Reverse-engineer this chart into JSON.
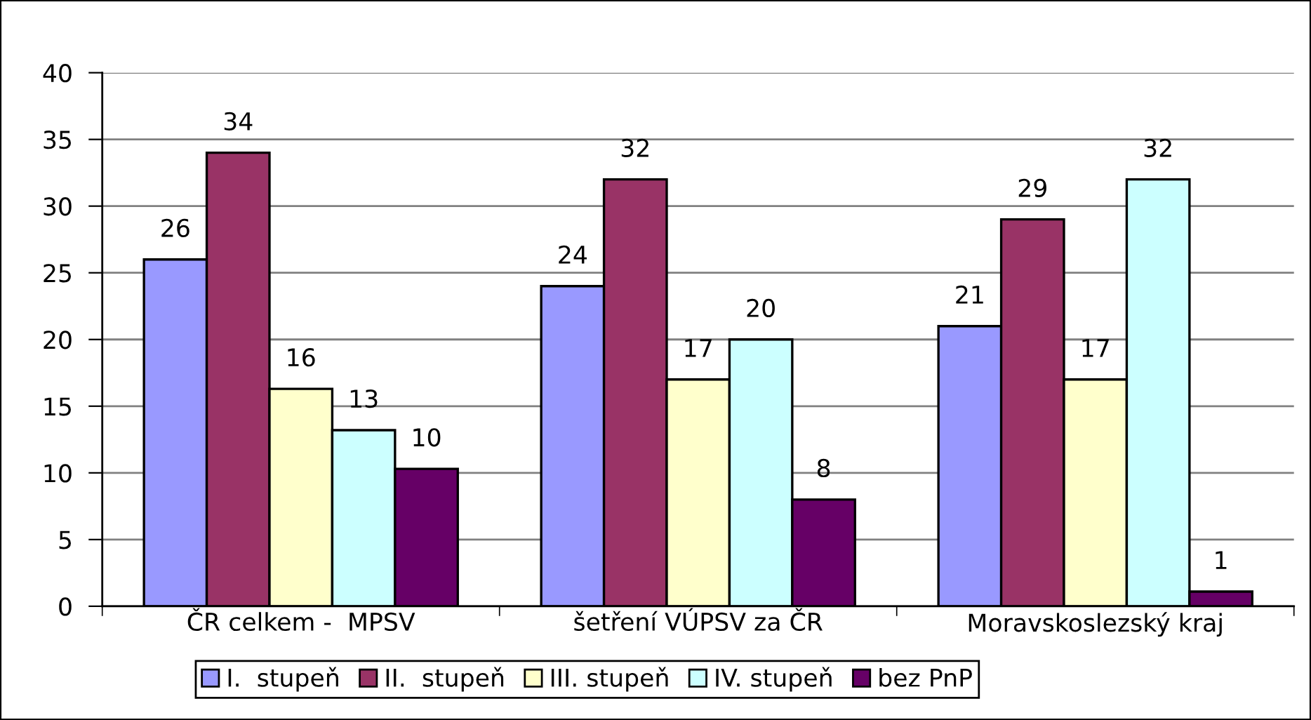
{
  "chart_data": {
    "type": "bar",
    "categories": [
      "ČR celkem -  MPSV",
      "šetření VÚPSV za ČR",
      "Moravskoslezský kraj"
    ],
    "series": [
      {
        "name": "I.  stupeň",
        "color": "#9999ff",
        "values": [
          26,
          24,
          21
        ],
        "value_labels": [
          "26",
          "24",
          "21"
        ]
      },
      {
        "name": "II.  stupeň",
        "color": "#993366",
        "values": [
          34,
          32,
          29
        ],
        "value_labels": [
          "34",
          "32",
          "29"
        ]
      },
      {
        "name": "III. stupeň",
        "color": "#ffffcc",
        "values": [
          16.3,
          17,
          17
        ],
        "value_labels": [
          "16",
          "17",
          "17"
        ]
      },
      {
        "name": "IV. stupeň",
        "color": "#ccffff",
        "values": [
          13.2,
          20,
          32
        ],
        "value_labels": [
          "13",
          "20",
          "32"
        ]
      },
      {
        "name": "bez PnP",
        "color": "#660066",
        "values": [
          10.3,
          8,
          1.1
        ],
        "value_labels": [
          "10",
          "8",
          "1"
        ]
      }
    ],
    "ylim": [
      0,
      40
    ],
    "yticks": [
      0,
      5,
      10,
      15,
      20,
      25,
      30,
      35,
      40
    ],
    "grid": "y",
    "legend": "bottom"
  }
}
